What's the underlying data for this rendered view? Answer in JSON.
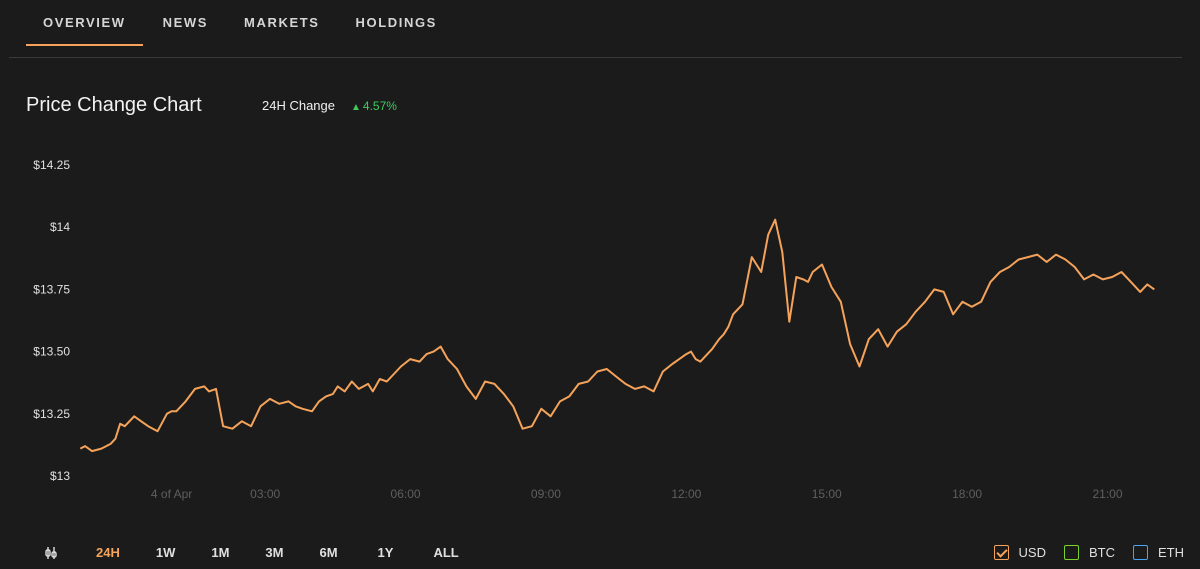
{
  "tabs": [
    "OVERVIEW",
    "NEWS",
    "MARKETS",
    "HOLDINGS"
  ],
  "header": {
    "title": "Price Change Chart",
    "change_label": "24H Change",
    "change_value": "4.57%",
    "change_color": "#3dcb5c"
  },
  "ranges": [
    "24H",
    "1W",
    "1M",
    "3M",
    "6M",
    "1Y",
    "ALL"
  ],
  "active_range": "24H",
  "range_icon": "candlestick-settings-icon",
  "currencies": [
    {
      "label": "USD",
      "color": "#f5a35a",
      "checked": true
    },
    {
      "label": "BTC",
      "color": "#7bd22f",
      "checked": false
    },
    {
      "label": "ETH",
      "color": "#4aa3f2",
      "checked": false
    }
  ],
  "chart_data": {
    "type": "line",
    "title": "",
    "xlabel": "",
    "ylabel": "",
    "y_tick_labels": [
      "$13",
      "$13.25",
      "$13.50",
      "$13.75",
      "$14",
      "$14.25"
    ],
    "y_tick_values": [
      13,
      13.25,
      13.5,
      13.75,
      14,
      14.25
    ],
    "x_tick_labels": [
      "4 of Apr",
      "03:00",
      "06:00",
      "09:00",
      "12:00",
      "15:00",
      "18:00",
      "21:00"
    ],
    "x_tick_hours": [
      1,
      3,
      6,
      9,
      12,
      15,
      18,
      21
    ],
    "xlim_hours": [
      -1,
      22.4
    ],
    "ylim": [
      13,
      14.25
    ],
    "line_color": "#f5a35a",
    "grid": false,
    "series": [
      {
        "x": [
          -0.95,
          -0.85,
          -0.7,
          -0.5,
          -0.3,
          -0.2,
          -0.1,
          0.0,
          0.2,
          0.35,
          0.5,
          0.7,
          0.9,
          1.0,
          1.1,
          1.3,
          1.5,
          1.7,
          1.8,
          1.95,
          2.1,
          2.3,
          2.5,
          2.7,
          2.9,
          3.1,
          3.3,
          3.5,
          3.65,
          3.8,
          4.0,
          4.15,
          4.3,
          4.45,
          4.55,
          4.7,
          4.85,
          5.0,
          5.2,
          5.3,
          5.45,
          5.6,
          5.75,
          5.9,
          6.1,
          6.3,
          6.45,
          6.6,
          6.75,
          6.9,
          7.1,
          7.3,
          7.5,
          7.7,
          7.9,
          8.1,
          8.3,
          8.5,
          8.7,
          8.9,
          9.1,
          9.3,
          9.5,
          9.7,
          9.9,
          10.1,
          10.3,
          10.5,
          10.7,
          10.9,
          11.1,
          11.3,
          11.5,
          11.7,
          11.85,
          12.0,
          12.1,
          12.2,
          12.3,
          12.45,
          12.55,
          12.7,
          12.8,
          12.9,
          13.0,
          13.2,
          13.4,
          13.6,
          13.75,
          13.9,
          14.05,
          14.2,
          14.35,
          14.5,
          14.6,
          14.7,
          14.9,
          15.1,
          15.3,
          15.5,
          15.7,
          15.9,
          16.1,
          16.3,
          16.5,
          16.7,
          16.9,
          17.1,
          17.3,
          17.5,
          17.7,
          17.9,
          18.1,
          18.3,
          18.5,
          18.7,
          18.9,
          19.1,
          19.3,
          19.5,
          19.7,
          19.9,
          20.1,
          20.3,
          20.5,
          20.7,
          20.9,
          21.1,
          21.3,
          21.5,
          21.7,
          21.85,
          22.0
        ],
        "y": [
          13.11,
          13.12,
          13.1,
          13.11,
          13.13,
          13.15,
          13.21,
          13.2,
          13.24,
          13.22,
          13.2,
          13.18,
          13.25,
          13.26,
          13.26,
          13.3,
          13.35,
          13.36,
          13.34,
          13.35,
          13.2,
          13.19,
          13.22,
          13.2,
          13.28,
          13.31,
          13.29,
          13.3,
          13.28,
          13.27,
          13.26,
          13.3,
          13.32,
          13.33,
          13.36,
          13.34,
          13.38,
          13.35,
          13.37,
          13.34,
          13.39,
          13.38,
          13.41,
          13.44,
          13.47,
          13.46,
          13.49,
          13.5,
          13.52,
          13.47,
          13.43,
          13.36,
          13.31,
          13.38,
          13.37,
          13.33,
          13.28,
          13.19,
          13.2,
          13.27,
          13.24,
          13.3,
          13.32,
          13.37,
          13.38,
          13.42,
          13.43,
          13.4,
          13.37,
          13.35,
          13.36,
          13.34,
          13.42,
          13.45,
          13.47,
          13.49,
          13.5,
          13.47,
          13.46,
          13.49,
          13.51,
          13.55,
          13.57,
          13.6,
          13.65,
          13.69,
          13.88,
          13.82,
          13.97,
          14.03,
          13.9,
          13.62,
          13.8,
          13.79,
          13.78,
          13.82,
          13.85,
          13.76,
          13.7,
          13.53,
          13.44,
          13.55,
          13.59,
          13.52,
          13.58,
          13.61,
          13.66,
          13.7,
          13.75,
          13.74,
          13.65,
          13.7,
          13.68,
          13.7,
          13.78,
          13.82,
          13.84,
          13.87,
          13.88,
          13.89,
          13.86,
          13.89,
          13.87,
          13.84,
          13.79,
          13.81,
          13.79,
          13.8,
          13.82,
          13.78,
          13.74,
          13.77,
          13.75
        ]
      }
    ]
  }
}
